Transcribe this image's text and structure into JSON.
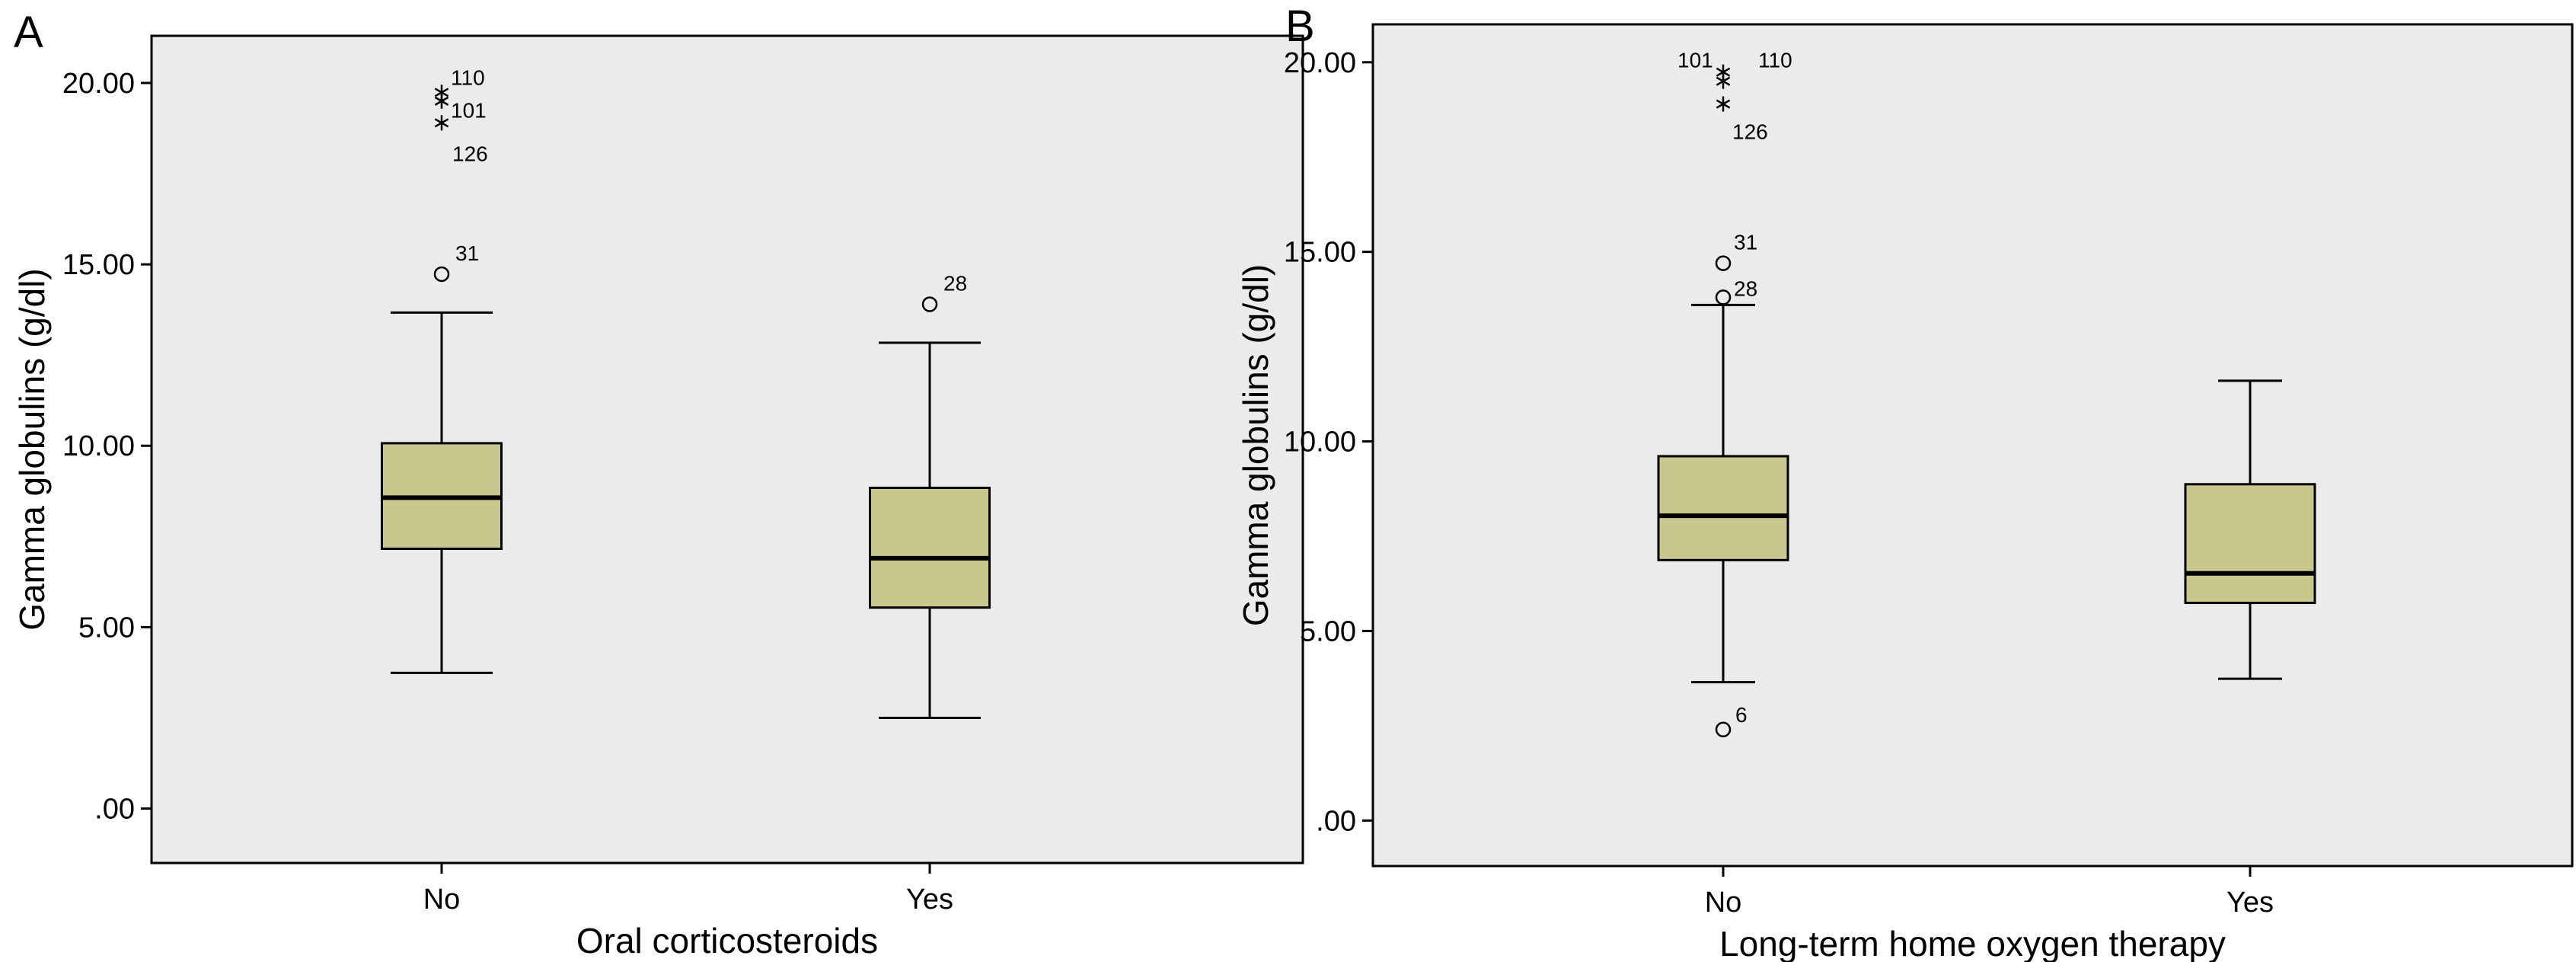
{
  "colors": {
    "plot_background": "#ebebeb",
    "box_fill": "#c8c88e",
    "line": "#000000"
  },
  "chart_data": [
    {
      "type": "box",
      "panel_label": "A",
      "xlabel": "Oral corticosteroids",
      "ylabel": "Gamma globulins (g/dl)",
      "categories": [
        "No",
        "Yes"
      ],
      "ylim": [
        -1.5,
        21.3
      ],
      "yticks": [
        0,
        5,
        10,
        15,
        20
      ],
      "ytick_labels": [
        ".00",
        "5.00",
        "10.00",
        "15.00",
        "20.00"
      ],
      "grid": false,
      "boxes": [
        {
          "category": "No",
          "min": 3.74,
          "q1": 7.16,
          "median": 8.57,
          "q3": 10.07,
          "max": 13.67,
          "outliers": [
            {
              "value": 14.73,
              "label": "31",
              "marker": "circle"
            },
            {
              "value": 19.74,
              "label": "110",
              "marker": "star"
            },
            {
              "value": 19.5,
              "label": "101",
              "marker": "star"
            },
            {
              "value": 18.9,
              "label": "126",
              "marker": "star"
            }
          ]
        },
        {
          "category": "Yes",
          "min": 2.5,
          "q1": 5.54,
          "median": 6.9,
          "q3": 8.84,
          "max": 12.84,
          "outliers": [
            {
              "value": 13.9,
              "label": "28",
              "marker": "circle"
            }
          ]
        }
      ]
    },
    {
      "type": "box",
      "panel_label": "B",
      "xlabel": "Long-term home oxygen therapy",
      "ylabel": "Gamma globulins (g/dl)",
      "categories": [
        "No",
        "Yes"
      ],
      "ylim": [
        -1.2,
        21.0
      ],
      "yticks": [
        0,
        5,
        10,
        15,
        20
      ],
      "ytick_labels": [
        ".00",
        "5.00",
        "10.00",
        "15.00",
        "20.00"
      ],
      "grid": false,
      "boxes": [
        {
          "category": "No",
          "min": 3.65,
          "q1": 6.87,
          "median": 8.04,
          "q3": 9.61,
          "max": 13.6,
          "outliers": [
            {
              "value": 14.7,
              "label": "31",
              "marker": "circle"
            },
            {
              "value": 13.8,
              "label": "28",
              "marker": "circle"
            },
            {
              "value": 2.4,
              "label": "6",
              "marker": "circle"
            },
            {
              "value": 19.74,
              "label": "110",
              "marker": "star"
            },
            {
              "value": 19.5,
              "label": "101",
              "marker": "star"
            },
            {
              "value": 18.9,
              "label": "126",
              "marker": "star"
            }
          ]
        },
        {
          "category": "Yes",
          "min": 3.74,
          "q1": 5.74,
          "median": 6.52,
          "q3": 8.87,
          "max": 11.6,
          "outliers": []
        }
      ]
    }
  ]
}
